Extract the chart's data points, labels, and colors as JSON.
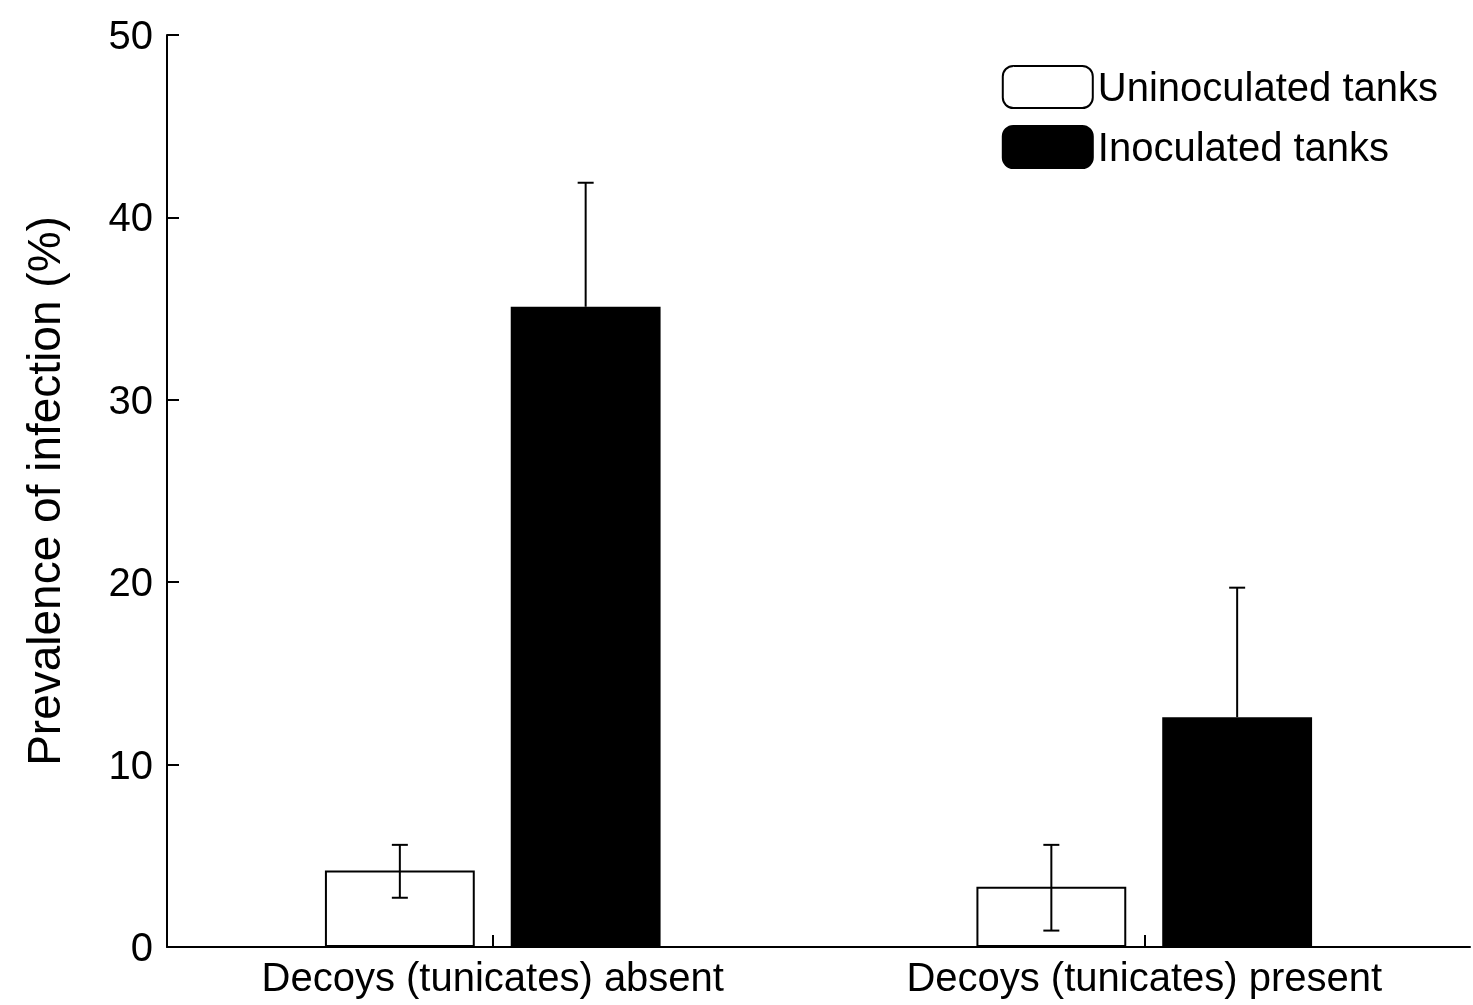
{
  "chart_data": {
    "type": "bar",
    "ylabel": "Prevalence of infection (%)",
    "categories": [
      "Decoys (tunicates) absent",
      "Decoys (tunicates) present"
    ],
    "series": [
      {
        "name": "Uninoculated tanks",
        "color": "#ffffff",
        "values": [
          4.2,
          3.3
        ],
        "errors": [
          [
            2.7,
            5.6
          ],
          [
            0.9,
            5.6
          ]
        ]
      },
      {
        "name": "Inoculated tanks",
        "color": "#000000",
        "values": [
          35.1,
          12.6
        ],
        "errors": [
          [
            35.1,
            41.9
          ],
          [
            12.6,
            19.7
          ]
        ]
      }
    ],
    "ylim": [
      0,
      50
    ],
    "yticks": [
      0,
      10,
      20,
      30,
      40,
      50
    ],
    "grid": false,
    "legend": "top right"
  }
}
